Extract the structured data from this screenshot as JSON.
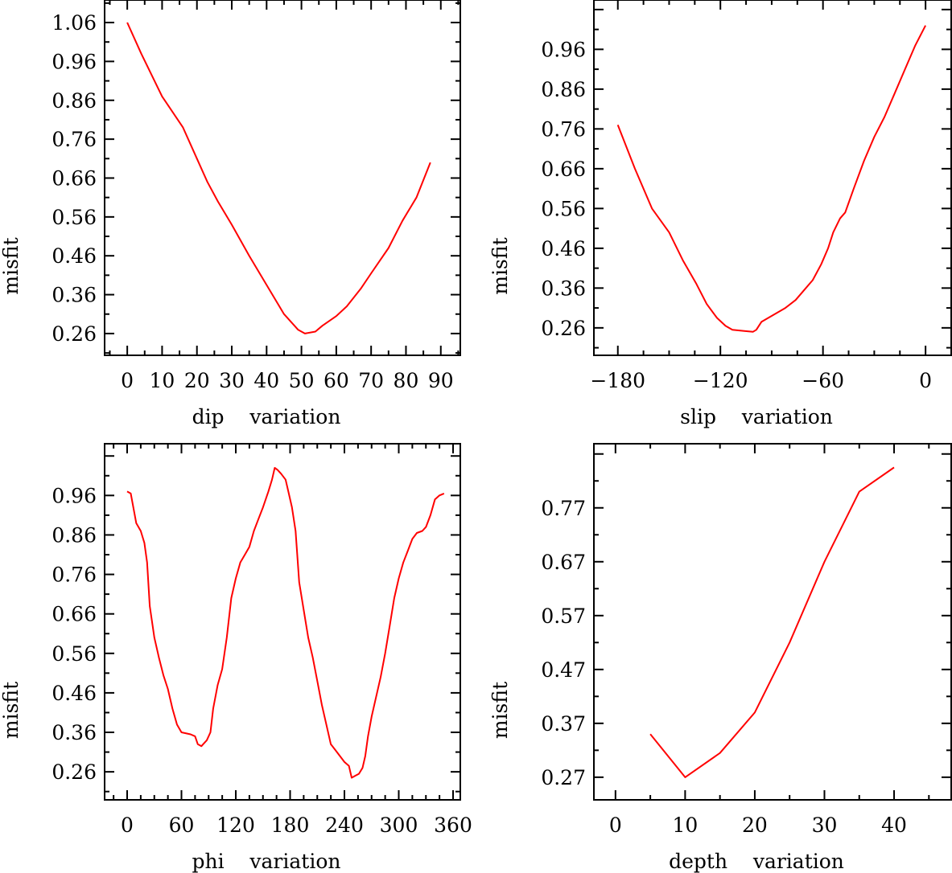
{
  "colors": {
    "line": "#ff0000",
    "axis": "#000000"
  },
  "chart_data": [
    {
      "type": "line",
      "xlabel": "dip    variation",
      "ylabel": "misfit",
      "xlim": [
        -6.5,
        95.6
      ],
      "ylim": [
        0.204,
        1.118
      ],
      "xticks": [
        0,
        10,
        20,
        30,
        40,
        50,
        60,
        70,
        80,
        90
      ],
      "xtick_labels": [
        "0",
        "10",
        "20",
        "30",
        "40",
        "50",
        "60",
        "70",
        "80",
        "90"
      ],
      "yticks": [
        1.06,
        0.96,
        0.86,
        0.76,
        0.66,
        0.56,
        0.46,
        0.36,
        0.26
      ],
      "ytick_labels": [
        "1.06",
        "0.96",
        "0.86",
        "0.76",
        "0.66",
        "0.56",
        "0.46",
        "0.36",
        "0.26"
      ],
      "minor_x": 5,
      "minor_y": 0.05,
      "x": [
        0,
        4,
        10,
        16,
        20,
        23,
        26,
        30,
        35,
        40,
        45,
        49,
        51,
        54,
        56,
        60,
        63,
        67,
        70,
        75,
        79,
        83,
        87
      ],
      "y": [
        1.06,
        0.98,
        0.87,
        0.79,
        0.71,
        0.65,
        0.6,
        0.54,
        0.46,
        0.385,
        0.31,
        0.27,
        0.26,
        0.265,
        0.28,
        0.305,
        0.33,
        0.375,
        0.415,
        0.48,
        0.55,
        0.61,
        0.7
      ]
    },
    {
      "type": "line",
      "xlabel": "slip    variation",
      "ylabel": "misfit",
      "xlim": [
        -194,
        15
      ],
      "ylim": [
        0.191,
        1.084
      ],
      "xticks": [
        -180,
        -120,
        -60,
        0
      ],
      "xtick_labels": [
        "−180",
        "−120",
        "−60",
        "0"
      ],
      "yticks": [
        0.96,
        0.86,
        0.76,
        0.66,
        0.56,
        0.46,
        0.36,
        0.26
      ],
      "ytick_labels": [
        "0.96",
        "0.86",
        "0.76",
        "0.66",
        "0.56",
        "0.46",
        "0.36",
        "0.26"
      ],
      "minor_x": 15,
      "minor_y": 0.05,
      "x": [
        -180,
        -170,
        -160,
        -150,
        -142,
        -134,
        -128,
        -122,
        -117,
        -113,
        -106,
        -101,
        -99,
        -96,
        -90,
        -82,
        -76,
        -71,
        -66,
        -61,
        -57,
        -54,
        -50,
        -47,
        -42,
        -36,
        -30,
        -24,
        -18,
        -12,
        -6,
        0
      ],
      "y": [
        0.77,
        0.66,
        0.56,
        0.5,
        0.43,
        0.37,
        0.32,
        0.285,
        0.265,
        0.255,
        0.252,
        0.25,
        0.255,
        0.275,
        0.29,
        0.31,
        0.33,
        0.355,
        0.38,
        0.42,
        0.46,
        0.5,
        0.535,
        0.55,
        0.61,
        0.68,
        0.74,
        0.79,
        0.85,
        0.91,
        0.97,
        1.02
      ]
    },
    {
      "type": "line",
      "xlabel": "phi    variation",
      "ylabel": "misfit",
      "xlim": [
        -24.9,
        368
      ],
      "ylim": [
        0.189,
        1.091
      ],
      "xticks": [
        0,
        60,
        120,
        180,
        240,
        300,
        360
      ],
      "xtick_labels": [
        "0",
        "60",
        "120",
        "180",
        "240",
        "300",
        "360"
      ],
      "yticks": [
        0.96,
        0.86,
        0.76,
        0.66,
        0.56,
        0.46,
        0.36,
        0.26
      ],
      "ytick_labels": [
        "0.96",
        "0.86",
        "0.76",
        "0.66",
        "0.56",
        "0.46",
        "0.36",
        "0.26"
      ],
      "minor_x": 15,
      "minor_y": 0.05,
      "x": [
        0,
        4,
        10,
        15,
        19,
        22,
        25,
        30,
        35,
        40,
        45,
        50,
        55,
        60,
        70,
        75,
        78,
        82,
        88,
        92,
        95,
        100,
        105,
        110,
        115,
        120,
        125,
        130,
        135,
        140,
        145,
        150,
        156,
        160,
        163,
        166,
        170,
        175,
        178,
        182,
        186,
        190,
        195,
        200,
        205,
        210,
        215,
        220,
        225,
        230,
        235,
        240,
        245,
        248,
        252,
        256,
        260,
        263,
        266,
        270,
        275,
        280,
        285,
        290,
        295,
        300,
        305,
        310,
        315,
        320,
        326,
        330,
        335,
        340,
        345,
        350
      ],
      "y": [
        0.97,
        0.965,
        0.89,
        0.87,
        0.84,
        0.79,
        0.68,
        0.6,
        0.55,
        0.505,
        0.47,
        0.42,
        0.38,
        0.36,
        0.355,
        0.35,
        0.33,
        0.325,
        0.34,
        0.36,
        0.42,
        0.48,
        0.52,
        0.6,
        0.7,
        0.75,
        0.79,
        0.81,
        0.83,
        0.87,
        0.9,
        0.93,
        0.97,
        1.0,
        1.03,
        1.025,
        1.015,
        1.0,
        0.97,
        0.93,
        0.87,
        0.74,
        0.67,
        0.6,
        0.55,
        0.49,
        0.43,
        0.38,
        0.33,
        0.315,
        0.3,
        0.285,
        0.275,
        0.245,
        0.25,
        0.255,
        0.27,
        0.3,
        0.35,
        0.4,
        0.45,
        0.5,
        0.56,
        0.63,
        0.7,
        0.75,
        0.79,
        0.82,
        0.85,
        0.865,
        0.87,
        0.88,
        0.91,
        0.95,
        0.96,
        0.965
      ]
    },
    {
      "type": "line",
      "xlabel": "depth    variation",
      "ylabel": "misfit",
      "xlim": [
        -3.1,
        48.2
      ],
      "ylim": [
        0.228,
        0.889
      ],
      "xticks": [
        0,
        10,
        20,
        30,
        40
      ],
      "xtick_labels": [
        "0",
        "10",
        "20",
        "30",
        "40"
      ],
      "yticks": [
        0.77,
        0.67,
        0.57,
        0.47,
        0.37,
        0.27
      ],
      "ytick_labels": [
        "0.77",
        "0.67",
        "0.57",
        "0.47",
        "0.37",
        "0.27"
      ],
      "minor_x": 5,
      "minor_y": 0.05,
      "x": [
        5,
        10,
        15,
        20,
        25,
        30,
        35,
        40
      ],
      "y": [
        0.35,
        0.27,
        0.315,
        0.39,
        0.52,
        0.67,
        0.8,
        0.845
      ]
    }
  ]
}
